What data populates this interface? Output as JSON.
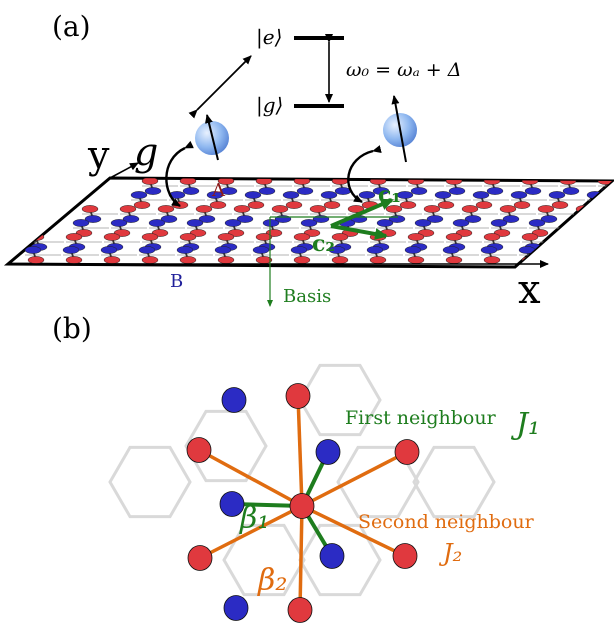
{
  "panel_a": {
    "label": "(a)",
    "ket_e": "|e⟩",
    "ket_g": "|g⟩",
    "omega_eq": "ω₀ = ωₐ + Δ",
    "axis_y": "y",
    "coupling": "g",
    "axis_x": "x",
    "site_A": "A",
    "site_B": "B",
    "vec_c1": "c₁",
    "vec_c2": "c₂",
    "basis": "Basis"
  },
  "panel_b": {
    "label": "(b)",
    "first_neighbour": "First neighbour",
    "J1": "J₁",
    "second_neighbour": "Second neighbour",
    "J2": "J₂",
    "beta1": "β₁",
    "beta2": "β₂"
  },
  "colors": {
    "site_A": "#e0393e",
    "site_B": "#2b2bc4",
    "first_neighbour": "#1e7d1e",
    "second_neighbour": "#e06c10",
    "label_A": "#8b1a1a",
    "label_B": "#1f1f9a",
    "atom": "#8fb8f0"
  }
}
